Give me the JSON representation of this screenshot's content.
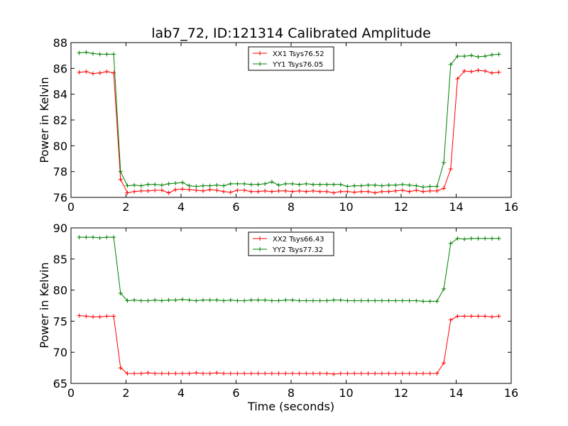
{
  "chart_data": [
    {
      "type": "line",
      "title": "lab7_72, ID:121314 Calibrated Amplitude",
      "xlabel": "",
      "ylabel": "Power in Kelvin",
      "xlim": [
        0,
        16
      ],
      "ylim": [
        76,
        88
      ],
      "xticks": [
        "0",
        "2",
        "4",
        "6",
        "8",
        "10",
        "12",
        "14",
        "16"
      ],
      "yticks": [
        "76",
        "78",
        "80",
        "82",
        "84",
        "86",
        "88"
      ],
      "grid": false,
      "legend_position": "upper-center",
      "x": [
        0.3,
        0.55,
        0.8,
        1.05,
        1.3,
        1.55,
        1.8,
        2.05,
        2.3,
        2.55,
        2.8,
        3.05,
        3.3,
        3.55,
        3.8,
        4.05,
        4.3,
        4.55,
        4.8,
        5.05,
        5.3,
        5.55,
        5.8,
        6.05,
        6.3,
        6.55,
        6.8,
        7.05,
        7.3,
        7.55,
        7.8,
        8.05,
        8.3,
        8.55,
        8.8,
        9.05,
        9.3,
        9.55,
        9.8,
        10.05,
        10.3,
        10.55,
        10.8,
        11.05,
        11.3,
        11.55,
        11.8,
        12.05,
        12.3,
        12.55,
        12.8,
        13.05,
        13.3,
        13.55,
        13.8,
        14.05,
        14.3,
        14.55,
        14.8,
        15.05,
        15.3,
        15.55
      ],
      "series": [
        {
          "name": "XX1 Tsys76.52",
          "color": "#ff0000",
          "values": [
            85.7,
            85.75,
            85.6,
            85.65,
            85.75,
            85.65,
            77.4,
            76.35,
            76.45,
            76.5,
            76.5,
            76.55,
            76.55,
            76.35,
            76.6,
            76.65,
            76.6,
            76.55,
            76.5,
            76.6,
            76.55,
            76.45,
            76.4,
            76.55,
            76.55,
            76.45,
            76.45,
            76.5,
            76.45,
            76.5,
            76.5,
            76.45,
            76.5,
            76.45,
            76.5,
            76.45,
            76.45,
            76.35,
            76.45,
            76.45,
            76.4,
            76.45,
            76.45,
            76.35,
            76.45,
            76.45,
            76.5,
            76.55,
            76.45,
            76.55,
            76.45,
            76.5,
            76.5,
            76.7,
            78.2,
            85.2,
            85.8,
            85.75,
            85.85,
            85.8,
            85.65,
            85.7
          ]
        },
        {
          "name": "YY1 Tsys76.05",
          "color": "#008000",
          "values": [
            87.2,
            87.25,
            87.15,
            87.1,
            87.1,
            87.1,
            78.0,
            76.9,
            76.95,
            76.9,
            77.0,
            77.0,
            76.95,
            77.05,
            77.1,
            77.15,
            76.9,
            76.85,
            76.9,
            76.9,
            76.95,
            76.9,
            77.05,
            77.05,
            77.05,
            77.0,
            77.0,
            77.05,
            77.2,
            76.95,
            77.05,
            77.05,
            77.0,
            77.05,
            77.0,
            77.0,
            77.0,
            77.0,
            77.0,
            76.85,
            76.9,
            76.9,
            76.95,
            76.95,
            76.9,
            76.95,
            76.95,
            77.0,
            76.95,
            76.9,
            76.8,
            76.85,
            76.85,
            78.7,
            86.3,
            86.95,
            86.95,
            87.0,
            86.9,
            86.95,
            87.05,
            87.1
          ]
        }
      ]
    },
    {
      "type": "line",
      "title": "",
      "xlabel": "Time (seconds)",
      "ylabel": "Power in Kelvin",
      "xlim": [
        0,
        16
      ],
      "ylim": [
        65,
        90
      ],
      "xticks": [
        "0",
        "2",
        "4",
        "6",
        "8",
        "10",
        "12",
        "14",
        "16"
      ],
      "yticks": [
        "65",
        "70",
        "75",
        "80",
        "85",
        "90"
      ],
      "grid": false,
      "legend_position": "upper-center",
      "x": [
        0.3,
        0.55,
        0.8,
        1.05,
        1.3,
        1.55,
        1.8,
        2.05,
        2.3,
        2.55,
        2.8,
        3.05,
        3.3,
        3.55,
        3.8,
        4.05,
        4.3,
        4.55,
        4.8,
        5.05,
        5.3,
        5.55,
        5.8,
        6.05,
        6.3,
        6.55,
        6.8,
        7.05,
        7.3,
        7.55,
        7.8,
        8.05,
        8.3,
        8.55,
        8.8,
        9.05,
        9.3,
        9.55,
        9.8,
        10.05,
        10.3,
        10.55,
        10.8,
        11.05,
        11.3,
        11.55,
        11.8,
        12.05,
        12.3,
        12.55,
        12.8,
        13.05,
        13.3,
        13.55,
        13.8,
        14.05,
        14.3,
        14.55,
        14.8,
        15.05,
        15.3,
        15.55
      ],
      "series": [
        {
          "name": "XX2 Tsys66.43",
          "color": "#ff0000",
          "values": [
            75.9,
            75.8,
            75.7,
            75.7,
            75.8,
            75.8,
            67.5,
            66.6,
            66.6,
            66.6,
            66.7,
            66.6,
            66.6,
            66.6,
            66.6,
            66.6,
            66.6,
            66.7,
            66.6,
            66.6,
            66.7,
            66.6,
            66.6,
            66.6,
            66.6,
            66.6,
            66.6,
            66.6,
            66.6,
            66.6,
            66.6,
            66.6,
            66.6,
            66.6,
            66.6,
            66.6,
            66.6,
            66.5,
            66.6,
            66.6,
            66.6,
            66.6,
            66.6,
            66.6,
            66.6,
            66.6,
            66.6,
            66.6,
            66.6,
            66.6,
            66.6,
            66.6,
            66.6,
            68.3,
            75.2,
            75.8,
            75.8,
            75.8,
            75.8,
            75.8,
            75.7,
            75.8
          ]
        },
        {
          "name": "YY2 Tsys77.32",
          "color": "#008000",
          "values": [
            88.5,
            88.5,
            88.5,
            88.4,
            88.5,
            88.5,
            79.5,
            78.3,
            78.4,
            78.3,
            78.3,
            78.4,
            78.3,
            78.4,
            78.4,
            78.5,
            78.4,
            78.3,
            78.4,
            78.4,
            78.4,
            78.3,
            78.4,
            78.3,
            78.3,
            78.4,
            78.4,
            78.4,
            78.3,
            78.3,
            78.4,
            78.4,
            78.3,
            78.3,
            78.3,
            78.3,
            78.3,
            78.4,
            78.4,
            78.3,
            78.3,
            78.3,
            78.3,
            78.3,
            78.3,
            78.3,
            78.3,
            78.3,
            78.3,
            78.3,
            78.2,
            78.2,
            78.2,
            80.2,
            87.5,
            88.3,
            88.2,
            88.3,
            88.3,
            88.3,
            88.3,
            88.3
          ]
        }
      ]
    }
  ]
}
